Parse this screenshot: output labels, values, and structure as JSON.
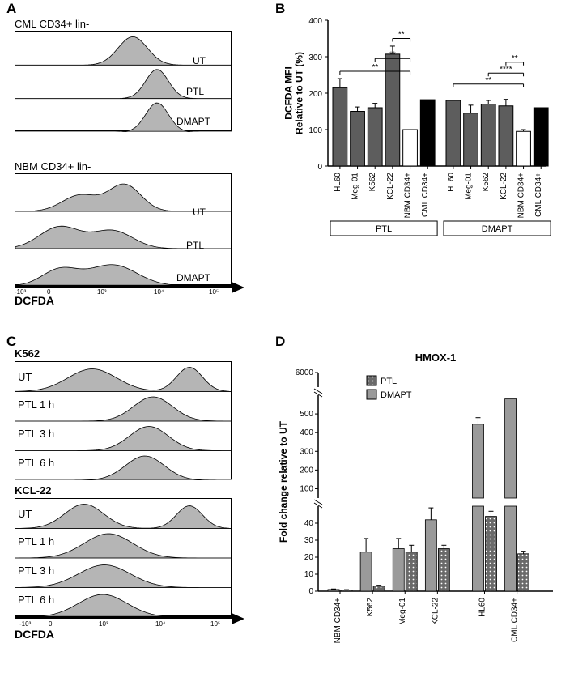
{
  "labels": {
    "A": "A",
    "B": "B",
    "C": "C",
    "D": "D"
  },
  "panelA": {
    "top_title": "CML CD34+ lin-",
    "bottom_title": "NBM CD34+ lin-",
    "rows_top": [
      "UT",
      "PTL",
      "DMAPT"
    ],
    "rows_bottom": [
      "UT",
      "PTL",
      "DMAPT"
    ],
    "xaxis": "DCFDA",
    "ticks": [
      "-10³",
      "0",
      "10³",
      "10⁴",
      "10⁵"
    ]
  },
  "panelC": {
    "top_title": "K562",
    "bottom_title": "KCL-22",
    "rows": [
      "UT",
      "PTL 1 h",
      "PTL 3 h",
      "PTL 6 h"
    ],
    "xaxis": "DCFDA",
    "ticks": [
      "-10³",
      "0",
      "10³",
      "10⁴",
      "10⁵"
    ]
  },
  "panelB": {
    "ylabel": "DCFDA MFI\nRelative to UT (%)",
    "ylim": [
      0,
      400
    ],
    "ytick_step": 100,
    "categories": [
      "HL60",
      "Meg-01",
      "K562",
      "KCL-22",
      "NBM CD34+",
      "CML CD34+",
      "HL60",
      "Meg-01",
      "K562",
      "KCL-22",
      "NBM CD34+",
      "CML CD34+"
    ],
    "group_labels": [
      "PTL",
      "DMAPT"
    ],
    "values": [
      215,
      150,
      160,
      307,
      100,
      182,
      180,
      145,
      170,
      165,
      95,
      160
    ],
    "errors": [
      25,
      12,
      12,
      22,
      0,
      0,
      0,
      22,
      10,
      18,
      5,
      0
    ],
    "bar_colors": [
      "#5d5d5d",
      "#5d5d5d",
      "#5d5d5d",
      "#5d5d5d",
      "#ffffff",
      "#000000",
      "#5d5d5d",
      "#5d5d5d",
      "#5d5d5d",
      "#5d5d5d",
      "#ffffff",
      "#000000"
    ],
    "sig_lines": [
      {
        "from": 0,
        "to": 4,
        "y": 260,
        "label": "**"
      },
      {
        "from": 2,
        "to": 4,
        "y": 295,
        "label": "**"
      },
      {
        "from": 3,
        "to": 4,
        "y": 350,
        "label": "**"
      },
      {
        "from": 6,
        "to": 10,
        "y": 225,
        "label": "**"
      },
      {
        "from": 8,
        "to": 10,
        "y": 255,
        "label": "****"
      },
      {
        "from": 9,
        "to": 10,
        "y": 285,
        "label": "**"
      }
    ],
    "label_fontsize": 12,
    "tick_fontsize": 10
  },
  "panelD": {
    "title": "HMOX-1",
    "ylabel": "Fold change relative to UT",
    "legend": [
      "PTL",
      "DMAPT"
    ],
    "categories": [
      "NBM CD34+",
      "K562",
      "Meg-01",
      "KCL-22",
      "HL60",
      "CML CD34+"
    ],
    "dmapt_values": [
      1,
      23,
      25,
      42,
      445,
      580
    ],
    "dmapt_errors": [
      0.3,
      8,
      6,
      7,
      35,
      0
    ],
    "ptl_values": [
      0.7,
      3,
      23,
      25,
      44,
      22
    ],
    "ptl_errors": [
      0.2,
      0.5,
      4,
      2,
      3,
      1.5
    ],
    "axis1_max": 50,
    "axis1_ticks": [
      0,
      10,
      20,
      30,
      40
    ],
    "axis2_min": 50,
    "axis2_max": 600,
    "axis2_ticks": [
      100,
      200,
      300,
      400,
      500
    ],
    "axis3_max": 6000,
    "axis3_ticks": [
      6000
    ],
    "dmapt_color": "#9a9a9a",
    "ptl_color": "#6a6a6a",
    "label_fontsize": 12
  },
  "hist_fill": "#a8a8a8"
}
